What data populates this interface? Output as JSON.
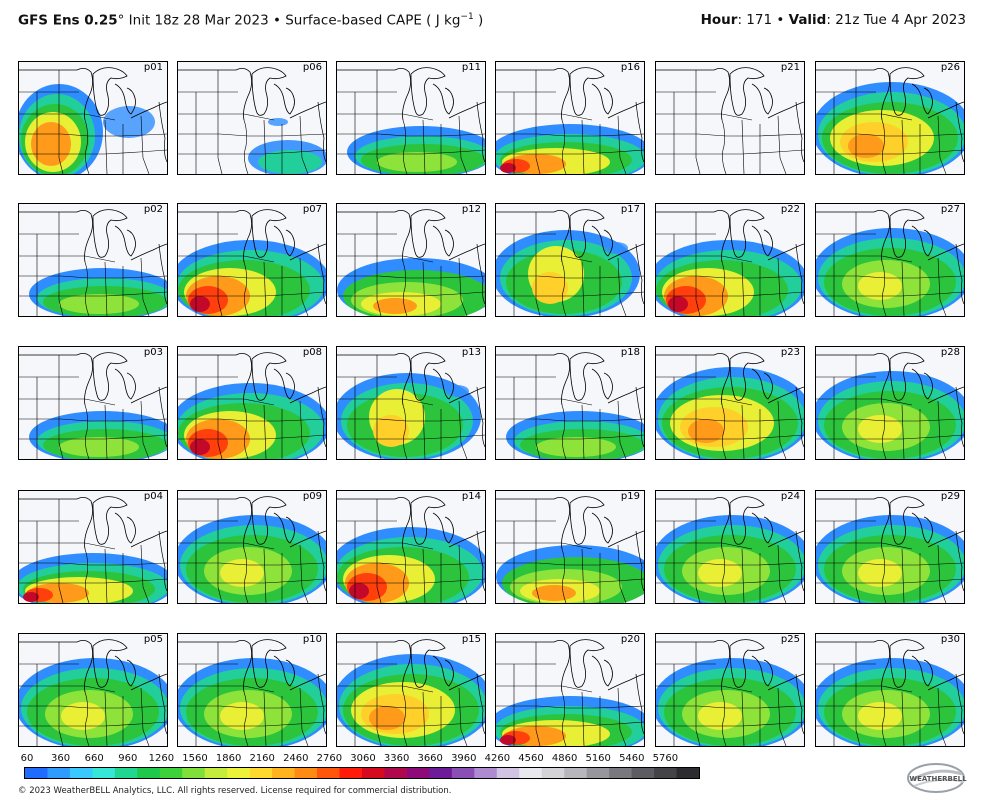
{
  "header": {
    "model": "GFS Ens 0.25",
    "init": "° Init 18z 28 Mar 2023 • Surface-based CAPE ( J kg",
    "unit_exp": "−1",
    "unit_close": " )",
    "hour_label": "Hour",
    "hour_value": ": 171 • ",
    "valid_label": "Valid",
    "valid_value": ": 21z Tue 4 Apr 2023"
  },
  "panels": [
    {
      "label": "p01",
      "pattern": "west-orange"
    },
    {
      "label": "p06",
      "pattern": "sparse-green"
    },
    {
      "label": "p11",
      "pattern": "south-green"
    },
    {
      "label": "p16",
      "pattern": "south-hot"
    },
    {
      "label": "p21",
      "pattern": "empty"
    },
    {
      "label": "p26",
      "pattern": "broad-orange"
    },
    {
      "label": "p02",
      "pattern": "south-green"
    },
    {
      "label": "p07",
      "pattern": "west-red"
    },
    {
      "label": "p12",
      "pattern": "south-mixed"
    },
    {
      "label": "p17",
      "pattern": "central-yellow"
    },
    {
      "label": "p22",
      "pattern": "west-red"
    },
    {
      "label": "p27",
      "pattern": "broad-green"
    },
    {
      "label": "p03",
      "pattern": "south-green"
    },
    {
      "label": "p08",
      "pattern": "west-red"
    },
    {
      "label": "p13",
      "pattern": "central-yellow"
    },
    {
      "label": "p18",
      "pattern": "south-green"
    },
    {
      "label": "p23",
      "pattern": "broad-orange"
    },
    {
      "label": "p28",
      "pattern": "broad-green"
    },
    {
      "label": "p04",
      "pattern": "south-hot"
    },
    {
      "label": "p09",
      "pattern": "broad-green"
    },
    {
      "label": "p14",
      "pattern": "west-red"
    },
    {
      "label": "p19",
      "pattern": "south-mixed"
    },
    {
      "label": "p24",
      "pattern": "broad-green"
    },
    {
      "label": "p29",
      "pattern": "broad-green"
    },
    {
      "label": "p05",
      "pattern": "broad-green"
    },
    {
      "label": "p10",
      "pattern": "broad-green"
    },
    {
      "label": "p15",
      "pattern": "broad-orange"
    },
    {
      "label": "p20",
      "pattern": "south-hot"
    },
    {
      "label": "p25",
      "pattern": "broad-green"
    },
    {
      "label": "p30",
      "pattern": "broad-green"
    }
  ],
  "colorbar": {
    "ticks": [
      "60",
      "360",
      "660",
      "960",
      "1260",
      "1560",
      "1860",
      "2160",
      "2460",
      "2760",
      "3060",
      "3360",
      "3660",
      "3960",
      "4260",
      "4560",
      "4860",
      "5160",
      "5460",
      "5760"
    ],
    "colors": [
      "#1f6cff",
      "#2f9bff",
      "#39c8ff",
      "#36e6d6",
      "#20d690",
      "#1ec84a",
      "#3ed23a",
      "#7fe03a",
      "#c4ec3c",
      "#ecf23a",
      "#ffd92e",
      "#ffb31f",
      "#ff8a14",
      "#ff560c",
      "#ff1a0a",
      "#d60a1e",
      "#b0084c",
      "#8e0a7a",
      "#6e1b9a",
      "#8a4fb5",
      "#b08ad0",
      "#d2c2e4",
      "#e8e8ee",
      "#d4d4d8",
      "#b6b6bc",
      "#96969c",
      "#78787e",
      "#5c5c62",
      "#444448",
      "#2c2c30"
    ]
  },
  "footer": {
    "copyright": "© 2023 WeatherBELL Analytics, LLC. All rights reserved. License required for commercial distribution.",
    "logo_text": "WEATHERBELL"
  }
}
